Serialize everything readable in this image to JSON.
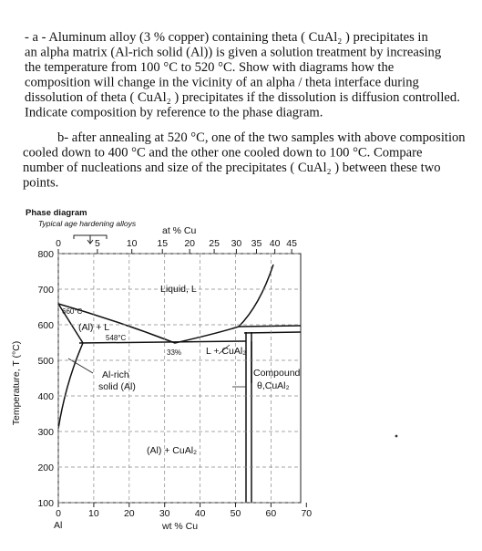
{
  "question_a": {
    "lines": [
      "-     a - Aluminum alloy (3 % copper) containing theta ( CuAl₂ ) precipitates in",
      "an alpha    matrix (Al-rich solid (Al)) is given a solution treatment by increasing",
      "the temperature from 100 °C  to 520 °C. Show with diagrams how the",
      "composition will change in the vicinity of an alpha / theta interface during",
      "dissolution of theta ( CuAl₂ ) precipitates if the dissolution is diffusion controlled.",
      "Indicate composition by reference to the phase diagram."
    ]
  },
  "question_b": {
    "lines": [
      "b- after annealing at 520 °C, one of the two samples with above composition",
      "cooled down to 400 °C and the other one cooled down to 100 °C.  Compare",
      "number of nucleations and size of the precipitates ( CuAl₂ ) between these two",
      "points."
    ]
  },
  "figure": {
    "title": "Phase diagram",
    "note": "Typical age hardening alloys",
    "top_axis_label": "at % Cu",
    "top_ticks": [
      0,
      5,
      10,
      15,
      20,
      25,
      30,
      35,
      40,
      45
    ],
    "yticks": [
      800,
      700,
      600,
      500,
      400,
      300,
      200,
      100
    ],
    "xticks": [
      0,
      10,
      20,
      30,
      40,
      50,
      60,
      70
    ],
    "y_label": "Temperature, T (°C)",
    "x_label": "wt % Cu",
    "x_origin_label": "Al",
    "regions": {
      "liquid": "Liquid, L",
      "melting_point": "660°C",
      "al_plus_l": "(Al) + L",
      "eutectic_temp": "548°C",
      "eutectic_comp": "33%",
      "l_plus_cual2": "L + CuAl₂",
      "al_rich_1": "Al-rich",
      "al_rich_2": "solid (Al)",
      "compound_1": "Compound",
      "compound_2": "θ,CuAl₂",
      "al_plus_cual2": "(Al) + CuAl₂"
    }
  }
}
